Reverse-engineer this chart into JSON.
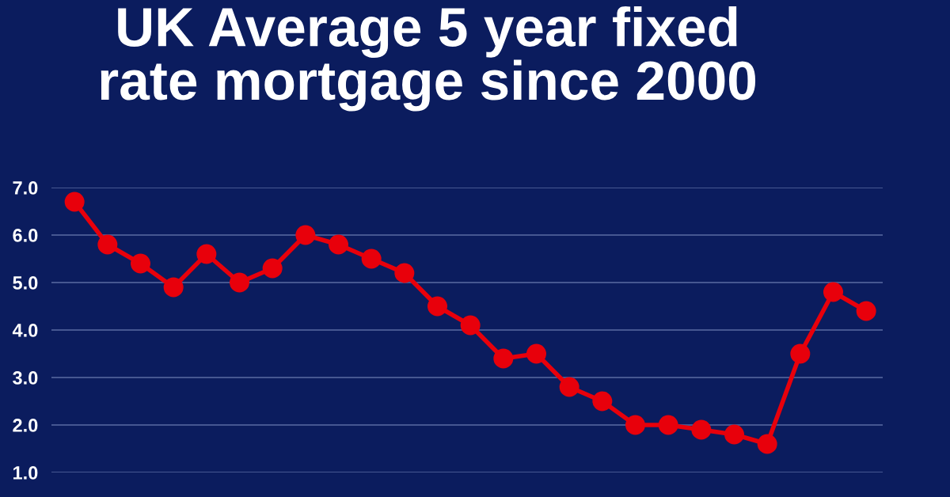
{
  "chart_data": {
    "type": "line",
    "title": "UK Average 5 year fixed\nrate mortgage since 2000",
    "categories": [
      null,
      null,
      null,
      null,
      null,
      null,
      null,
      null,
      null,
      null,
      null,
      null,
      null,
      null,
      null,
      null,
      null,
      null,
      null,
      null,
      null,
      null,
      null,
      null,
      null
    ],
    "series": [
      {
        "color": "#e8000b",
        "values": [
          6.7,
          5.8,
          5.4,
          4.9,
          5.6,
          5.0,
          5.3,
          6.0,
          5.8,
          5.5,
          5.2,
          4.5,
          4.1,
          3.4,
          3.5,
          2.8,
          2.5,
          2.0,
          2.0,
          1.9,
          1.8,
          1.6,
          3.5,
          4.8,
          4.4
        ]
      }
    ],
    "ylim": [
      1.0,
      7.0
    ],
    "yticks": [
      {
        "value": 1,
        "label": "1.0"
      },
      {
        "value": 2,
        "label": "2.0"
      },
      {
        "value": 3,
        "label": "3.0"
      },
      {
        "value": 4,
        "label": "4.0"
      },
      {
        "value": 5,
        "label": "5.0"
      },
      {
        "value": 6,
        "label": "6.0"
      },
      {
        "value": 7,
        "label": "7.0"
      }
    ],
    "grid": "y",
    "tick_labels": "y",
    "marker": "circle",
    "line_style": "solid"
  }
}
